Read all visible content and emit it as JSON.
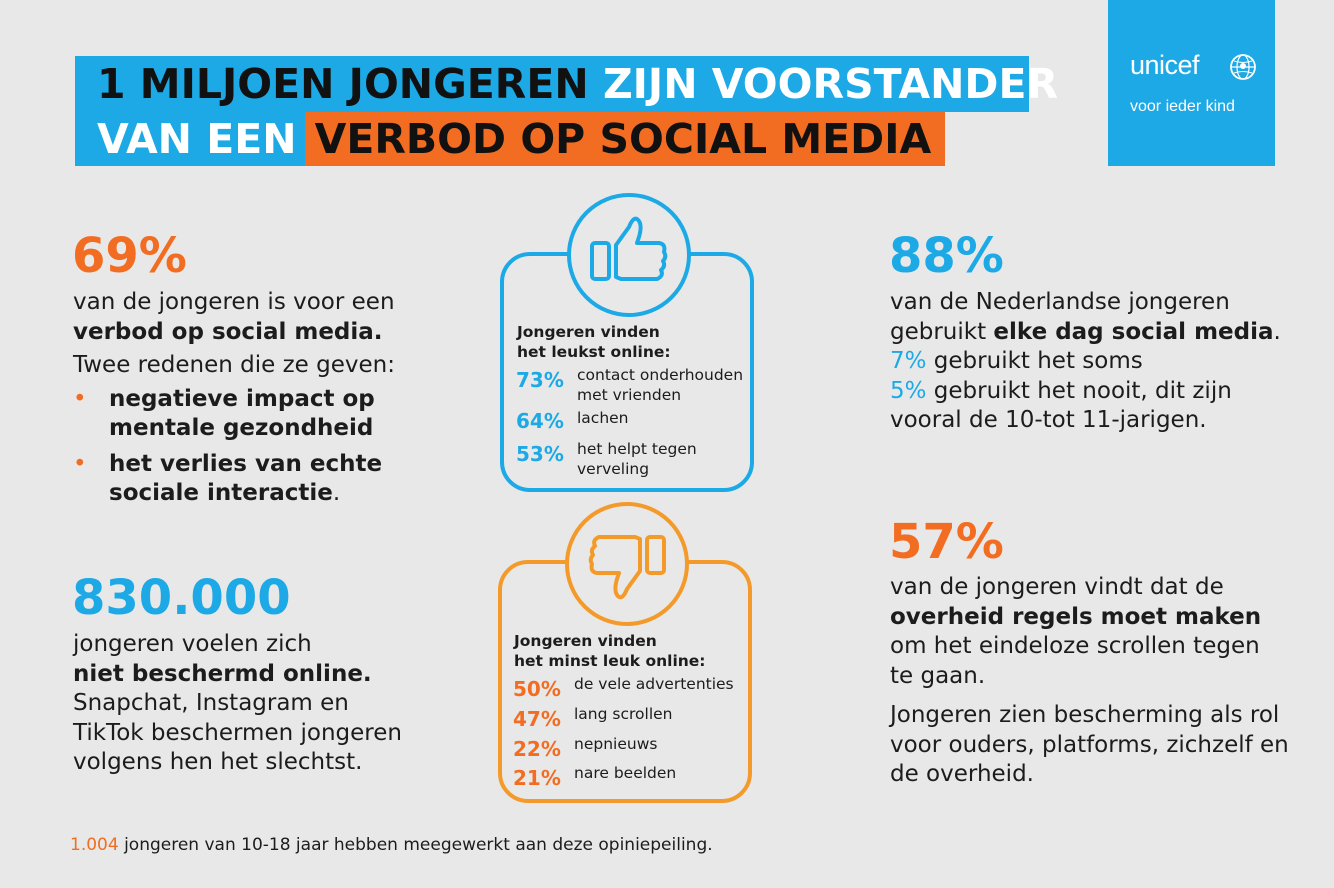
{
  "title": {
    "line1_dark": "1 MILJOEN JONGEREN",
    "line1_white": "ZIJN VOORSTANDER",
    "line2_white": "VAN EEN",
    "line2_dark": "VERBOD OP SOCIAL MEDIA"
  },
  "logo": {
    "word": "unicef",
    "tagline": "voor ieder kind",
    "icon": "unicef-globe-icon"
  },
  "stat69": {
    "value": "69%",
    "line1": "van de jongeren is voor een",
    "line2": "verbod op social media.",
    "reasons_intro": "Twee redenen die ze geven:",
    "reasons": [
      {
        "l1": "negatieve impact op",
        "l2": "mentale gezondheid",
        "tail": ""
      },
      {
        "l1": "het verlies van echte",
        "l2": "sociale interactie",
        "tail": "."
      }
    ]
  },
  "stat830": {
    "value": "830.000",
    "line1": "jongeren voelen zich",
    "line2": "niet beschermd online.",
    "line3": "Snapchat, Instagram en",
    "line4": "TikTok beschermen jongeren",
    "line5": "volgens hen het slechtst."
  },
  "likes": {
    "icon": "thumbs-up-icon",
    "title1": "Jongeren vinden",
    "title2": "het leukst online:",
    "items": [
      {
        "pct": "73%",
        "l1": "contact onderhouden",
        "l2": "met vrienden"
      },
      {
        "pct": "64%",
        "l1": "lachen",
        "l2": ""
      },
      {
        "pct": "53%",
        "l1": "het helpt tegen",
        "l2": "verveling"
      }
    ]
  },
  "dislikes": {
    "icon": "thumbs-down-icon",
    "title1": "Jongeren vinden",
    "title2": "het minst leuk online:",
    "items": [
      {
        "pct": "50%",
        "l1": "de vele advertenties"
      },
      {
        "pct": "47%",
        "l1": "lang scrollen"
      },
      {
        "pct": "22%",
        "l1": "nepnieuws"
      },
      {
        "pct": "21%",
        "l1": "nare beelden"
      }
    ]
  },
  "stat88": {
    "value": "88%",
    "line1": "van de Nederlandse jongeren",
    "line2a": "gebruikt ",
    "line2b": "elke dag social media",
    "line2c": ".",
    "l3pct": "7%",
    "l3txt": " gebruikt het soms",
    "l4pct": "5%",
    "l4txt": " gebruikt het nooit, dit zijn",
    "line5": "vooral de 10-tot 11-jarigen."
  },
  "stat57": {
    "value": "57%",
    "line1": "van de jongeren vindt dat de",
    "line2": "overheid regels moet maken",
    "line3": "om het eindeloze scrollen tegen",
    "line4": "te gaan.",
    "p2l1": "Jongeren zien bescherming als rol",
    "p2l2": "voor ouders, platforms, zichzelf en",
    "p2l3": "de overheid."
  },
  "footer": {
    "num": "1.004",
    "text": " jongeren van 10-18 jaar hebben meegewerkt aan deze opiniepeiling."
  },
  "colors": {
    "blue": "#1ca9e6",
    "orange": "#f26c21",
    "background": "#e8e8e8"
  }
}
